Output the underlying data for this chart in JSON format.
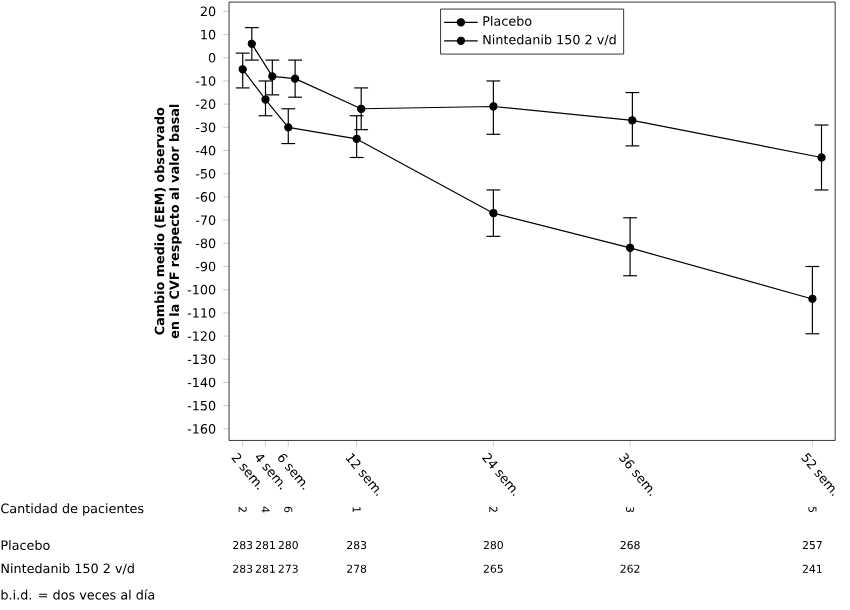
{
  "chart_data": {
    "type": "line",
    "ylabel": "Cambio medio (EEM) observado en la CVF respecto al valor basal",
    "xlim": [
      0.8,
      54
    ],
    "ylim": [
      -165,
      24
    ],
    "xticks": [
      {
        "value": 2,
        "label": "2 sem."
      },
      {
        "value": 4,
        "label": "4 sem."
      },
      {
        "value": 6,
        "label": "6 sem."
      },
      {
        "value": 12,
        "label": "12 sem."
      },
      {
        "value": 24,
        "label": "24 sem."
      },
      {
        "value": 36,
        "label": "36 sem."
      },
      {
        "value": 52,
        "label": "52 sem."
      }
    ],
    "yticks": [
      20,
      10,
      0,
      -10,
      -20,
      -30,
      -40,
      -50,
      -60,
      -70,
      -80,
      -90,
      -100,
      -110,
      -120,
      -130,
      -140,
      -150,
      -160
    ],
    "legend": "top",
    "marker": "circle",
    "line_style": "solid",
    "grid": false,
    "series": [
      {
        "name": "Placebo",
        "color": "#000000",
        "x": [
          2,
          4,
          6,
          12,
          24,
          36,
          52
        ],
        "values": [
          -5,
          -18,
          -30,
          -35,
          -67,
          -82,
          -104
        ],
        "errors": [
          [
            -13,
            2
          ],
          [
            -25,
            -10
          ],
          [
            -37,
            -22
          ],
          [
            -43,
            -25
          ],
          [
            -77,
            -57
          ],
          [
            -94,
            -69
          ],
          [
            -119,
            -90
          ]
        ]
      },
      {
        "name": "Nintedanib 150 2 v/d",
        "color": "#000000",
        "x": [
          2.8,
          4.6,
          6.6,
          12.4,
          24,
          36.2,
          52.8
        ],
        "values": [
          6,
          -8,
          -9,
          -22,
          -21,
          -27,
          -43
        ],
        "errors": [
          [
            -1,
            13
          ],
          [
            -16,
            -1
          ],
          [
            -17,
            -1
          ],
          [
            -31,
            -13
          ],
          [
            -33,
            -10
          ],
          [
            -38,
            -15
          ],
          [
            -57,
            -29
          ]
        ]
      }
    ],
    "annotations": [
      "Cantidad de pacientes",
      "2",
      "4",
      "6",
      "1",
      "2",
      "3",
      "5",
      "Placebo",
      "283",
      "281",
      "280",
      "283",
      "280",
      "268",
      "257",
      "Nintedanib 150 2 v/d",
      "283",
      "281",
      "273",
      "278",
      "265",
      "262",
      "241",
      "b.i.d. = dos veces al día"
    ]
  }
}
